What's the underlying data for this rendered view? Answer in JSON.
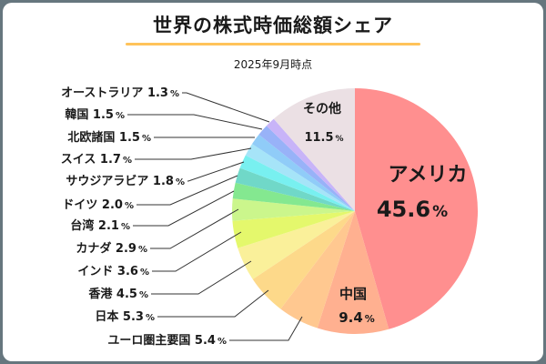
{
  "chart_data": {
    "type": "pie",
    "title": "世界の株式時価総額シェア",
    "subtitle": "2025年9月時点",
    "unit": "%",
    "slices": [
      {
        "label": "アメリカ",
        "value": 45.6,
        "color": "#ff8f8f"
      },
      {
        "label": "中国",
        "value": 9.4,
        "color": "#ffb090"
      },
      {
        "label": "ユーロ圏主要国",
        "value": 5.4,
        "color": "#ffc890"
      },
      {
        "label": "日本",
        "value": 5.3,
        "color": "#fdd98a"
      },
      {
        "label": "香港",
        "value": 4.5,
        "color": "#faf09a"
      },
      {
        "label": "インド",
        "value": 3.6,
        "color": "#e4f86c"
      },
      {
        "label": "カナダ",
        "value": 2.9,
        "color": "#cbf68c"
      },
      {
        "label": "台湾",
        "value": 2.1,
        "color": "#84e890"
      },
      {
        "label": "ドイツ",
        "value": 2.0,
        "color": "#70d8c8"
      },
      {
        "label": "サウジアラビア",
        "value": 1.8,
        "color": "#78f0f0"
      },
      {
        "label": "スイス",
        "value": 1.7,
        "color": "#a6e4f8"
      },
      {
        "label": "北欧諸国",
        "value": 1.5,
        "color": "#90ccf8"
      },
      {
        "label": "韓国",
        "value": 1.5,
        "color": "#98b2f8"
      },
      {
        "label": "オーストラリア",
        "value": 1.3,
        "color": "#c8b4f8"
      },
      {
        "label": "その他",
        "value": 11.5,
        "color": "#ebe0e4"
      }
    ],
    "legend": "none"
  },
  "colors": {
    "underline": "#ffc35a",
    "frame": "#66767e"
  }
}
